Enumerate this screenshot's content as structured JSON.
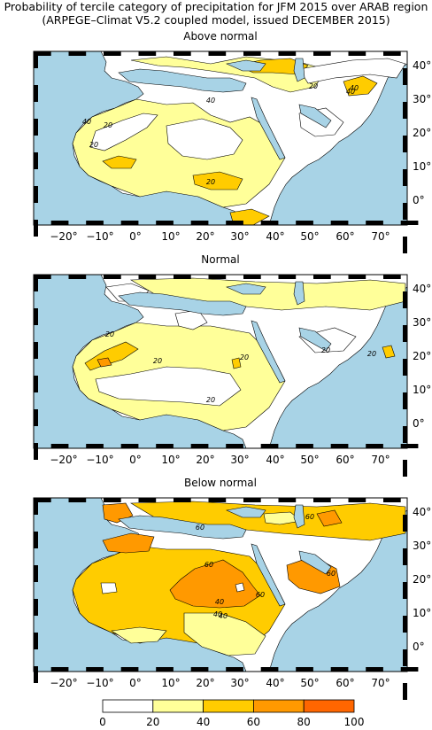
{
  "title": "Probability of tercile category of precipitation for JFM 2015 over ARAB region",
  "subtitle": "(ARPEGE–Climat V5.2 coupled model, issued DECEMBER 2015)",
  "panels": [
    {
      "title": "Above normal",
      "contour_labels": [
        "20",
        "40",
        "20",
        "20",
        "40",
        "40",
        "20",
        "40"
      ]
    },
    {
      "title": "Normal",
      "contour_labels": [
        "20",
        "20",
        "20",
        "20",
        "20",
        "20"
      ]
    },
    {
      "title": "Below normal",
      "contour_labels": [
        "60",
        "40",
        "60",
        "60",
        "60",
        "40",
        "60",
        "40"
      ]
    }
  ],
  "x_ticks": [
    "−20°",
    "−10°",
    "0°",
    "10°",
    "20°",
    "30°",
    "40°",
    "50°",
    "60°",
    "70°"
  ],
  "y_ticks": [
    "40°",
    "30°",
    "20°",
    "10°",
    "0°"
  ],
  "colorbar": {
    "ticks": [
      "0",
      "20",
      "40",
      "60",
      "80",
      "100"
    ],
    "colors": [
      "#ffffff",
      "#ffff99",
      "#ffcc00",
      "#ff9900",
      "#ff6600"
    ]
  },
  "colors": {
    "ocean": "#a8d3e6",
    "land": "#ffffff",
    "prob_20_40": "#ffff99",
    "prob_40_60": "#ffcc00",
    "prob_60_80": "#ff9900",
    "prob_80_100": "#ff6600"
  }
}
